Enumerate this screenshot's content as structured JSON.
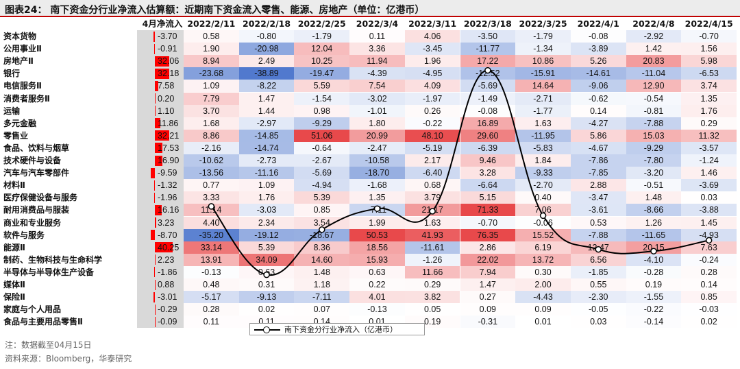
{
  "title": "图表24： 南下资金分行业净流入估算额：近期南下资金流入零售、能源、房地产（单位：亿港币）",
  "note": "注：数据截至04月15日",
  "source": "资料来源：Bloomberg，华泰研究",
  "legend_label": "南下资金分行业净流入（亿港币）",
  "colors": {
    "positive": "#e8494b",
    "negative": "#2f5fc4",
    "bar": "#ff0000",
    "header_bar": "#c00000"
  },
  "chart_data": {
    "type": "table",
    "flow_header": "4月净流入",
    "columns": [
      "2022/2/11",
      "2022/2/18",
      "2022/2/25",
      "2022/3/4",
      "2022/3/11",
      "2022/3/18",
      "2022/3/25",
      "2022/4/1",
      "2022/4/8",
      "2022/4/15"
    ],
    "rows": [
      {
        "label": "资本货物",
        "flow": "-3.70",
        "values": [
          "0.58",
          "-0.80",
          "-1.79",
          "0.11",
          "4.06",
          "-3.50",
          "-1.79",
          "-0.08",
          "-2.92",
          "-0.70"
        ]
      },
      {
        "label": "公用事业Ⅱ",
        "flow": "-0.91",
        "values": [
          "1.90",
          "-20.98",
          "12.04",
          "3.36",
          "-3.45",
          "-11.77",
          "-1.34",
          "-3.89",
          "1.42",
          "1.56"
        ]
      },
      {
        "label": "房地产Ⅱ",
        "flow": "32.06",
        "values": [
          "8.94",
          "2.49",
          "10.25",
          "11.94",
          "1.96",
          "17.22",
          "10.86",
          "5.26",
          "20.83",
          "5.98"
        ]
      },
      {
        "label": "银行",
        "flow": "32.18",
        "values": [
          "-23.68",
          "-38.89",
          "-19.47",
          "-4.39",
          "-4.95",
          "-12.52",
          "-15.91",
          "-14.61",
          "-11.04",
          "-6.53"
        ]
      },
      {
        "label": "电信服务Ⅱ",
        "flow": "7.58",
        "values": [
          "1.09",
          "-8.22",
          "5.59",
          "7.54",
          "4.09",
          "-5.69",
          "14.64",
          "-9.06",
          "12.90",
          "3.74"
        ]
      },
      {
        "label": "消费者服务Ⅱ",
        "flow": "0.20",
        "values": [
          "7.79",
          "1.47",
          "-1.54",
          "-3.02",
          "-1.97",
          "-1.49",
          "-2.71",
          "-0.62",
          "-0.54",
          "1.35"
        ]
      },
      {
        "label": "运输",
        "flow": "1.10",
        "values": [
          "3.70",
          "1.44",
          "0.98",
          "-1.01",
          "0.26",
          "-0.08",
          "-1.77",
          "0.14",
          "-0.81",
          "1.76"
        ]
      },
      {
        "label": "多元金融",
        "flow": "11.86",
        "values": [
          "1.68",
          "-2.97",
          "-9.29",
          "1.80",
          "-0.22",
          "16.89",
          "1.63",
          "-4.27",
          "-7.88",
          "0.29"
        ]
      },
      {
        "label": "零售业",
        "flow": "32.21",
        "values": [
          "8.86",
          "-14.85",
          "51.06",
          "20.99",
          "48.10",
          "29.60",
          "-11.95",
          "5.86",
          "15.03",
          "11.32"
        ]
      },
      {
        "label": "食品、饮料与烟草",
        "flow": "17.53",
        "values": [
          "-2.16",
          "-14.74",
          "-0.64",
          "-2.47",
          "-5.19",
          "-6.39",
          "-5.83",
          "-4.67",
          "-9.29",
          "-3.57"
        ]
      },
      {
        "label": "技术硬件与设备",
        "flow": "16.90",
        "values": [
          "-10.62",
          "-2.73",
          "-2.67",
          "-10.58",
          "2.17",
          "9.46",
          "1.84",
          "-7.86",
          "-7.80",
          "-1.24"
        ]
      },
      {
        "label": "汽车与汽车零部件",
        "flow": "-9.59",
        "values": [
          "-13.56",
          "-11.16",
          "-5.69",
          "-18.70",
          "-6.40",
          "3.28",
          "-9.33",
          "-7.85",
          "-3.20",
          "1.46"
        ]
      },
      {
        "label": "材料Ⅱ",
        "flow": "-1.32",
        "values": [
          "0.77",
          "1.09",
          "-4.94",
          "-1.68",
          "0.68",
          "-6.64",
          "-2.70",
          "2.88",
          "-0.51",
          "-3.69"
        ]
      },
      {
        "label": "医疗保健设备与服务",
        "flow": "-1.96",
        "values": [
          "3.33",
          "1.76",
          "5.39",
          "1.35",
          "3.79",
          "5.15",
          "0.40",
          "-3.47",
          "1.48",
          "0.03"
        ]
      },
      {
        "label": "耐用消费品与服装",
        "flow": "16.16",
        "values": [
          "11.14",
          "-3.03",
          "0.85",
          "-7.11",
          "21.17",
          "71.33",
          "7.06",
          "-3.61",
          "-8.66",
          "-3.88"
        ]
      },
      {
        "label": "商业和专业服务",
        "flow": "3.23",
        "values": [
          "4.40",
          "2.34",
          "3.54",
          "1.99",
          "1.63",
          "-0.70",
          "-0.06",
          "0.53",
          "1.26",
          "1.45"
        ]
      },
      {
        "label": "软件与服务",
        "flow": "-8.70",
        "values": [
          "-35.20",
          "-19.12",
          "-18.67",
          "50.53",
          "41.93",
          "76.35",
          "15.52",
          "-7.88",
          "-11.65",
          "-4.93"
        ]
      },
      {
        "label": "能源Ⅱ",
        "flow": "40.25",
        "values": [
          "33.14",
          "5.39",
          "8.36",
          "18.56",
          "-11.61",
          "2.86",
          "6.19",
          "12.47",
          "20.15",
          "7.63"
        ]
      },
      {
        "label": "制药、生物科技与生命科学",
        "flow": "2.23",
        "values": [
          "13.91",
          "34.09",
          "14.60",
          "15.93",
          "-1.26",
          "22.02",
          "13.72",
          "6.56",
          "-4.10",
          "-0.24"
        ]
      },
      {
        "label": "半导体与半导体生产设备",
        "flow": "-1.86",
        "values": [
          "-0.13",
          "0.63",
          "1.48",
          "0.63",
          "11.66",
          "7.94",
          "0.30",
          "-1.85",
          "-0.28",
          "0.28"
        ]
      },
      {
        "label": "媒体Ⅱ",
        "flow": "0.88",
        "values": [
          "0.48",
          "0.31",
          "1.18",
          "0.22",
          "0.29",
          "1.47",
          "2.00",
          "0.55",
          "0.19",
          "0.14"
        ]
      },
      {
        "label": "保险Ⅱ",
        "flow": "-3.01",
        "values": [
          "-5.17",
          "-9.13",
          "-7.11",
          "4.01",
          "3.82",
          "0.27",
          "-4.43",
          "-2.30",
          "-1.55",
          "0.85"
        ]
      },
      {
        "label": "家庭与个人用品",
        "flow": "-0.29",
        "values": [
          "0.28",
          "0.02",
          "0.07",
          "-0.13",
          "0.05",
          "0.09",
          "0.09",
          "-0.05",
          "-0.22",
          "-0.03"
        ]
      },
      {
        "label": "食品与主要用品零售Ⅱ",
        "flow": "-0.09",
        "values": [
          "0.11",
          "0.11",
          "0.14",
          "0.01",
          "0.19",
          "-0.31",
          "0.01",
          "0.03",
          "-0.14",
          "0.02"
        ]
      }
    ],
    "line_series": {
      "name": "南下资金分行业净流入（亿港币）",
      "x": [
        "2022/2/11",
        "2022/2/18",
        "2022/2/25",
        "2022/3/4",
        "2022/3/11",
        "2022/3/18",
        "2022/3/25",
        "2022/4/1",
        "2022/4/8",
        "2022/4/15"
      ],
      "values": [
        11.14,
        -19.12,
        0.85,
        10.15,
        9.0,
        71.33,
        7.06,
        -7.88,
        -8.66,
        -3.88
      ]
    }
  }
}
